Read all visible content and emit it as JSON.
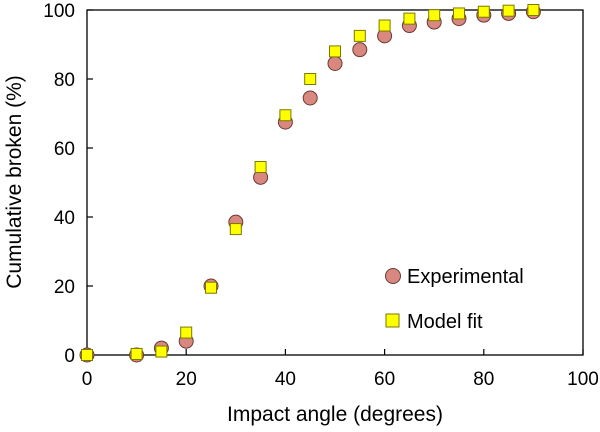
{
  "chart_data": {
    "type": "scatter",
    "xlabel": "Impact angle (degrees)",
    "ylabel": "Cumulative broken (%)",
    "xlim": [
      0,
      100
    ],
    "ylim": [
      0,
      100
    ],
    "x_ticks": [
      0,
      20,
      40,
      60,
      80,
      100
    ],
    "y_ticks": [
      0,
      20,
      40,
      60,
      80,
      100
    ],
    "grid": false,
    "legend_position": "bottom-right",
    "series": [
      {
        "name": "Experimental",
        "marker": "circle",
        "color": "#d98880",
        "stroke": "#6b3a36",
        "x": [
          0,
          10,
          15,
          20,
          25,
          30,
          35,
          40,
          45,
          50,
          55,
          60,
          65,
          70,
          75,
          80,
          85,
          90
        ],
        "y": [
          0,
          0,
          2,
          4,
          20,
          38.5,
          51.5,
          67.5,
          74.5,
          84.5,
          88.5,
          92.5,
          95.5,
          96.5,
          97.5,
          98.5,
          99,
          99.5
        ]
      },
      {
        "name": "Model fit",
        "marker": "square",
        "color": "#ffff00",
        "stroke": "#7a7a00",
        "x": [
          0,
          10,
          15,
          20,
          25,
          30,
          35,
          40,
          45,
          50,
          55,
          60,
          65,
          70,
          75,
          80,
          85,
          90
        ],
        "y": [
          0,
          0.3,
          1,
          6.5,
          19.5,
          36.5,
          54.5,
          69.5,
          80,
          88,
          92.5,
          95.5,
          97.5,
          98.5,
          99,
          99.5,
          99.8,
          100
        ]
      }
    ]
  }
}
